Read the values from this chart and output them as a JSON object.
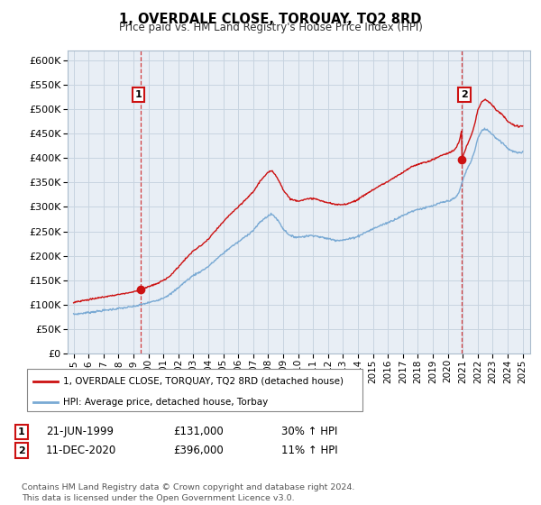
{
  "title": "1, OVERDALE CLOSE, TORQUAY, TQ2 8RD",
  "subtitle": "Price paid vs. HM Land Registry's House Price Index (HPI)",
  "legend_line1": "1, OVERDALE CLOSE, TORQUAY, TQ2 8RD (detached house)",
  "legend_line2": "HPI: Average price, detached house, Torbay",
  "transaction1_date": "21-JUN-1999",
  "transaction1_price": "£131,000",
  "transaction1_hpi": "30% ↑ HPI",
  "transaction2_date": "11-DEC-2020",
  "transaction2_price": "£396,000",
  "transaction2_hpi": "11% ↑ HPI",
  "footnote": "Contains HM Land Registry data © Crown copyright and database right 2024.\nThis data is licensed under the Open Government Licence v3.0.",
  "hpi_color": "#7aaad4",
  "price_color": "#cc1111",
  "background_color": "#ffffff",
  "chart_bg_color": "#e8eef5",
  "grid_color": "#c8d4e0",
  "ylim": [
    0,
    620000
  ],
  "yticks": [
    0,
    50000,
    100000,
    150000,
    200000,
    250000,
    300000,
    350000,
    400000,
    450000,
    500000,
    550000,
    600000
  ],
  "year_start": 1995,
  "year_end": 2025,
  "transaction1_year": 1999.47,
  "transaction2_year": 2020.95
}
